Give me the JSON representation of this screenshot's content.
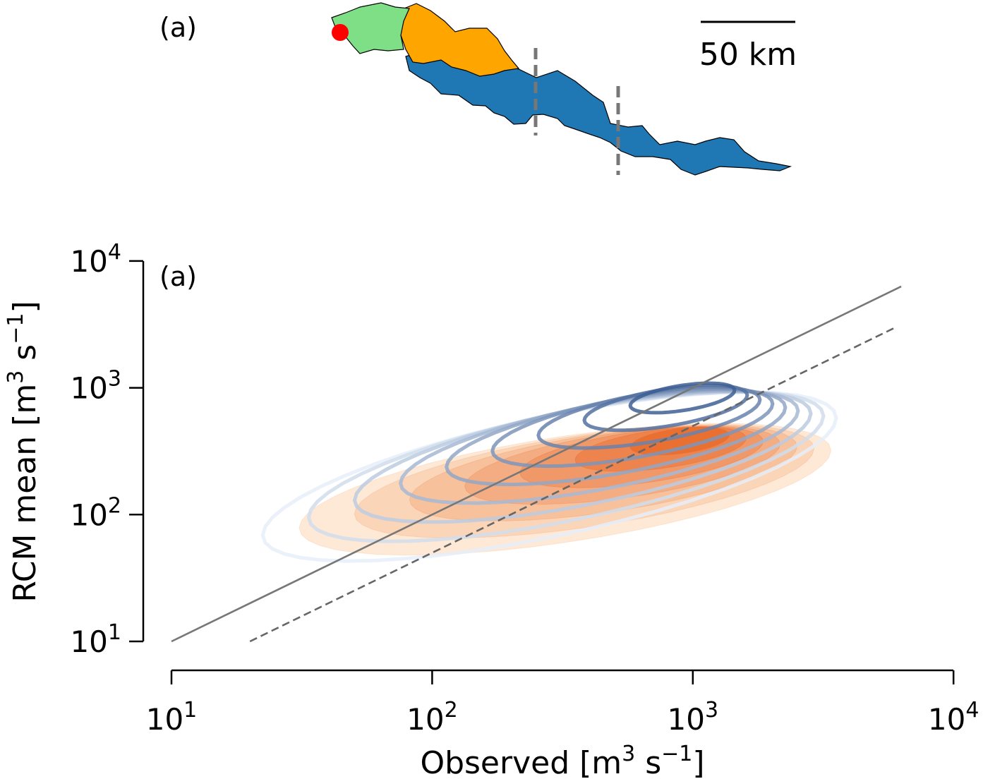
{
  "map_panel": {
    "label": "(a)",
    "scale_bar_label": "50 km",
    "colors": {
      "green": "#7fdf87",
      "orange": "#ffa500",
      "blue": "#1f77b4",
      "outlet_marker": "#ff0000",
      "divider": "#808080"
    }
  },
  "chart_data": {
    "type": "contour",
    "panel_label": "(a)",
    "xlabel": "Observed [m",
    "xlabel_sup": "3",
    "xlabel_mid": " s",
    "xlabel_sup2": "−1",
    "xlabel_end": "]",
    "ylabel": "RCM mean [m",
    "ylabel_sup": "3",
    "ylabel_mid": " s",
    "ylabel_sup2": "−1",
    "ylabel_end": "]",
    "x_scale": "log",
    "y_scale": "log",
    "xlim": [
      10,
      10000
    ],
    "ylim": [
      10,
      10000
    ],
    "x_ticks": [
      {
        "base": "10",
        "exp": "1"
      },
      {
        "base": "10",
        "exp": "2"
      },
      {
        "base": "10",
        "exp": "3"
      },
      {
        "base": "10",
        "exp": "4"
      }
    ],
    "y_ticks": [
      {
        "base": "10",
        "exp": "1"
      },
      {
        "base": "10",
        "exp": "2"
      },
      {
        "base": "10",
        "exp": "3"
      },
      {
        "base": "10",
        "exp": "4"
      }
    ],
    "grid": false,
    "reference_lines": [
      {
        "style": "solid",
        "ratio": 1,
        "x_range": [
          10,
          6300
        ],
        "color": "#777777"
      },
      {
        "style": "dashed",
        "ratio": 0.5,
        "x_range": [
          20,
          6000
        ],
        "color": "#666666"
      }
    ],
    "orange_kde_filled": {
      "color_range": [
        "#fde2c8",
        "#e8692a"
      ],
      "levels": 7,
      "outer": {
        "center_log": [
          2.51,
          2.2
        ],
        "half_width_dex": 1.02,
        "half_height_dex": 0.42,
        "shear": 0.3
      },
      "inner": {
        "center_log": [
          2.95,
          2.58
        ],
        "half_width_dex": 0.19,
        "half_height_dex": 0.1,
        "shear": 0.25
      }
    },
    "blue_kde_lines": {
      "color_range": [
        "#e6eff9",
        "#3e5f94"
      ],
      "levels": 9,
      "outer": {
        "center_log": [
          2.45,
          2.3
        ],
        "half_width_dex": 1.1,
        "half_height_dex": 0.48,
        "shear": 0.42
      },
      "inner": {
        "center_log": [
          2.96,
          2.92
        ],
        "half_width_dex": 0.2,
        "half_height_dex": 0.1,
        "shear": 0.3
      }
    }
  }
}
